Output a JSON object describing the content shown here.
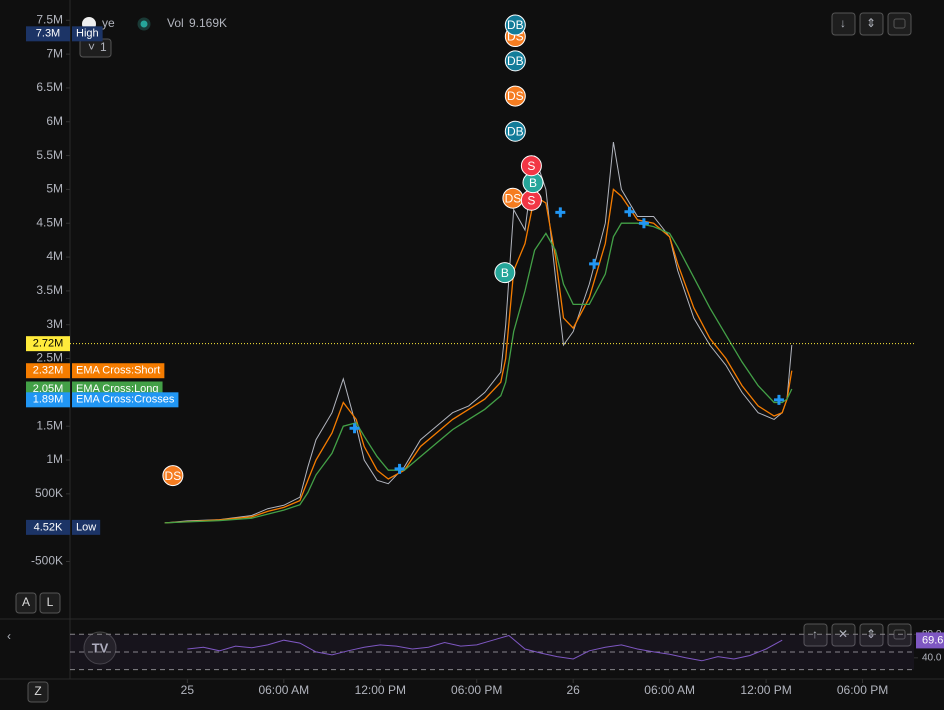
{
  "chart_data": [
    {
      "type": "line",
      "legend": {
        "symbol": "ye",
        "volume_label": "Vol",
        "volume": "9.169K",
        "interval": "1"
      },
      "x": [
        -1.4,
        0,
        2,
        4,
        5,
        6,
        7,
        7.5,
        8,
        9,
        9.7,
        10.5,
        11,
        11.8,
        12.5,
        13.5,
        14.5,
        15.5,
        16.5,
        17.5,
        18.5,
        19.5,
        19.8,
        20.3,
        21,
        21.6,
        22.3,
        22.9,
        23.4,
        24,
        25,
        26,
        26.5,
        27,
        28,
        29,
        30,
        30.5,
        31.5,
        32.5,
        33.5,
        34.5,
        35.5,
        36.5,
        37,
        37.3,
        37.6
      ],
      "series": [
        {
          "color": "#b2b5be",
          "values": [
            70000,
            100000,
            120000,
            180000,
            280000,
            330000,
            450000,
            900000,
            1300000,
            1700000,
            2200000,
            1500000,
            1000000,
            700000,
            650000,
            900000,
            1300000,
            1500000,
            1700000,
            1800000,
            2000000,
            2300000,
            3000000,
            4700000,
            4400000,
            5500000,
            5000000,
            3700000,
            2700000,
            2900000,
            3600000,
            4500000,
            5700000,
            5000000,
            4600000,
            4600000,
            4300000,
            3800000,
            3100000,
            2700000,
            2400000,
            2000000,
            1700000,
            1600000,
            1700000,
            1900000,
            2700000
          ]
        },
        {
          "color": "#f57c00",
          "values": [
            70000,
            90000,
            115000,
            160000,
            240000,
            300000,
            400000,
            700000,
            1000000,
            1400000,
            1850000,
            1600000,
            1200000,
            850000,
            720000,
            850000,
            1200000,
            1400000,
            1600000,
            1750000,
            1900000,
            2150000,
            2500000,
            3800000,
            4200000,
            4900000,
            4800000,
            4000000,
            3100000,
            2950000,
            3400000,
            4200000,
            5000000,
            4900000,
            4550000,
            4500000,
            4300000,
            3900000,
            3250000,
            2800000,
            2500000,
            2100000,
            1800000,
            1650000,
            1700000,
            1900000,
            2320000
          ]
        },
        {
          "color": "#43a047",
          "values": [
            70000,
            85000,
            105000,
            140000,
            200000,
            260000,
            340000,
            520000,
            780000,
            1100000,
            1500000,
            1550000,
            1350000,
            1050000,
            850000,
            850000,
            1050000,
            1250000,
            1450000,
            1600000,
            1750000,
            1950000,
            2150000,
            2900000,
            3500000,
            4100000,
            4350000,
            4100000,
            3600000,
            3300000,
            3300000,
            3750000,
            4300000,
            4500000,
            4500000,
            4450000,
            4350000,
            4150000,
            3700000,
            3250000,
            2850000,
            2450000,
            2100000,
            1850000,
            1850000,
            1900000,
            2050000
          ]
        }
      ],
      "crosses": {
        "color": "#2196f3",
        "points": [
          {
            "x": 10.4,
            "y": 1470000
          },
          {
            "x": 13.2,
            "y": 870000
          },
          {
            "x": 23.2,
            "y": 4660000
          },
          {
            "x": 25.3,
            "y": 3900000
          },
          {
            "x": 27.5,
            "y": 4670000
          },
          {
            "x": 28.4,
            "y": 4500000
          },
          {
            "x": 36.8,
            "y": 1890000
          }
        ]
      },
      "signals": [
        {
          "label": "DS",
          "x": -0.9,
          "y": 770000,
          "color": "#f57c20"
        },
        {
          "label": "B",
          "x": 19.75,
          "y": 3770000,
          "color": "#26a69a"
        },
        {
          "label": "DS",
          "x": 20.25,
          "y": 4870000,
          "color": "#f57c20"
        },
        {
          "label": "S",
          "x": 21.4,
          "y": 4840000,
          "color": "#f23645"
        },
        {
          "label": "B",
          "x": 21.5,
          "y": 5100000,
          "color": "#26a69a"
        },
        {
          "label": "S",
          "x": 21.4,
          "y": 5350000,
          "color": "#f23645"
        },
        {
          "label": "DB",
          "x": 20.4,
          "y": 5860000,
          "color": "#137c99"
        },
        {
          "label": "DS",
          "x": 20.4,
          "y": 6380000,
          "color": "#f57c20"
        },
        {
          "label": "DB",
          "x": 20.4,
          "y": 6900000,
          "color": "#137c99"
        },
        {
          "label": "DS",
          "x": 20.4,
          "y": 7260000,
          "color": "#f57c20"
        },
        {
          "label": "DB",
          "x": 20.4,
          "y": 7430000,
          "color": "#137c99"
        }
      ],
      "tags": [
        {
          "value": 7300000,
          "label": "7.3M",
          "text": "High",
          "color": "#1c3466"
        },
        {
          "value": 4520,
          "label": "4.52K",
          "text": "Low",
          "color": "#1c3466"
        },
        {
          "value": 2720000,
          "label": "2.72M",
          "color": "#ffeb3b",
          "line": true
        },
        {
          "value": 2320000,
          "label": "2.32M",
          "text": "EMA Cross:Short",
          "color": "#f57c00"
        },
        {
          "value": 2050000,
          "label": "2.05M",
          "text": "EMA Cross:Long",
          "color": "#43a047"
        },
        {
          "value": 1890000,
          "label": "1.89M",
          "text": "EMA Cross:Crosses",
          "color": "#2196f3"
        }
      ],
      "xlim": [
        -7.3,
        45.2
      ],
      "xticks": [
        {
          "value": 0,
          "label": "25"
        },
        {
          "value": 6,
          "label": "06:00 AM"
        },
        {
          "value": 12,
          "label": "12:00 PM"
        },
        {
          "value": 18,
          "label": "06:00 PM"
        },
        {
          "value": 24,
          "label": "26"
        },
        {
          "value": 30,
          "label": "06:00 AM"
        },
        {
          "value": 36,
          "label": "12:00 PM"
        },
        {
          "value": 42,
          "label": "06:00 PM"
        }
      ],
      "ylim": [
        -1350000,
        7800000
      ],
      "yticks": [
        {
          "value": 7500000,
          "label": "7.5M"
        },
        {
          "value": 7000000,
          "label": "7M"
        },
        {
          "value": 6500000,
          "label": "6.5M"
        },
        {
          "value": 6000000,
          "label": "6M"
        },
        {
          "value": 5500000,
          "label": "5.5M"
        },
        {
          "value": 5000000,
          "label": "5M"
        },
        {
          "value": 4500000,
          "label": "4.5M"
        },
        {
          "value": 4000000,
          "label": "4M"
        },
        {
          "value": 3500000,
          "label": "3.5M"
        },
        {
          "value": 3000000,
          "label": "3M"
        },
        {
          "value": 2500000,
          "label": "2.5M"
        },
        {
          "value": 2000000,
          "label": "2M"
        },
        {
          "value": 1500000,
          "label": "1.5M"
        },
        {
          "value": 1000000,
          "label": "1M"
        },
        {
          "value": 500000,
          "label": "500K"
        },
        {
          "value": -500000,
          "label": "-500K"
        }
      ],
      "buttons": [
        "A",
        "L",
        "Z"
      ]
    },
    {
      "type": "rsi",
      "x": [
        0,
        1,
        2,
        3,
        4,
        5,
        6,
        7,
        8,
        9,
        10,
        11,
        12,
        13,
        14,
        15,
        16,
        17,
        18,
        19,
        20,
        21,
        22,
        23,
        24,
        25,
        26,
        27,
        28,
        29,
        30,
        31,
        32,
        33,
        34,
        35,
        36,
        37
      ],
      "values": [
        55,
        58,
        52,
        60,
        57,
        62,
        70,
        65,
        50,
        45,
        52,
        58,
        62,
        60,
        55,
        58,
        66,
        60,
        62,
        70,
        78,
        55,
        48,
        42,
        38,
        52,
        58,
        62,
        55,
        50,
        46,
        40,
        35,
        42,
        38,
        44,
        55,
        70
      ],
      "color": "#7e57c2",
      "bands": [
        80,
        50,
        20
      ],
      "ylim": [
        4,
        106
      ],
      "yticks": [
        {
          "value": 80,
          "label": "80.0"
        },
        {
          "value": 40,
          "label": "40.0"
        }
      ],
      "tag": {
        "value": 69.6,
        "label": "69.6"
      }
    }
  ]
}
